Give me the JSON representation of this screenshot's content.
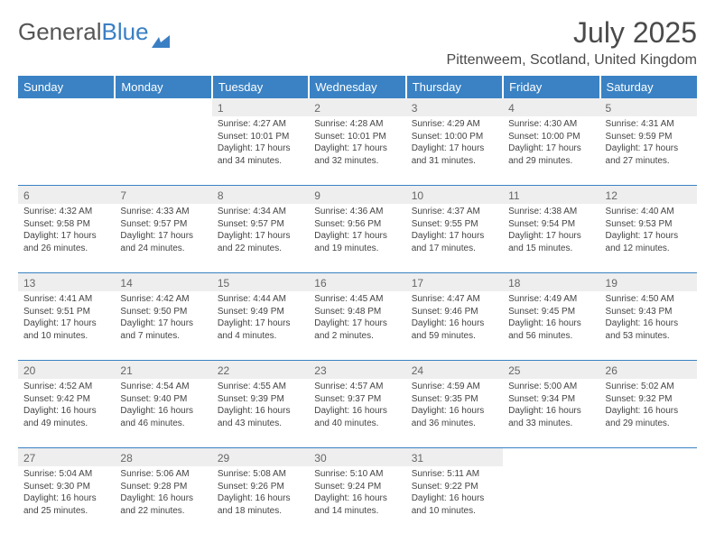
{
  "brand": {
    "word1": "General",
    "word2": "Blue",
    "word1_color": "#555555",
    "word2_color": "#3a7fc4",
    "mark_color": "#3a7fc4"
  },
  "title": "July 2025",
  "location": "Pittenweem, Scotland, United Kingdom",
  "colors": {
    "header_bg": "#3a82c4",
    "header_text": "#ffffff",
    "rule": "#3a82c4",
    "shade": "#eeeeee",
    "body_text": "#444444",
    "daynum_text": "#666666",
    "page_bg": "#ffffff"
  },
  "day_headers": [
    "Sunday",
    "Monday",
    "Tuesday",
    "Wednesday",
    "Thursday",
    "Friday",
    "Saturday"
  ],
  "weeks": [
    [
      null,
      null,
      {
        "n": "1",
        "sr": "4:27 AM",
        "ss": "10:01 PM",
        "dl": "17 hours and 34 minutes."
      },
      {
        "n": "2",
        "sr": "4:28 AM",
        "ss": "10:01 PM",
        "dl": "17 hours and 32 minutes."
      },
      {
        "n": "3",
        "sr": "4:29 AM",
        "ss": "10:00 PM",
        "dl": "17 hours and 31 minutes."
      },
      {
        "n": "4",
        "sr": "4:30 AM",
        "ss": "10:00 PM",
        "dl": "17 hours and 29 minutes."
      },
      {
        "n": "5",
        "sr": "4:31 AM",
        "ss": "9:59 PM",
        "dl": "17 hours and 27 minutes."
      }
    ],
    [
      {
        "n": "6",
        "sr": "4:32 AM",
        "ss": "9:58 PM",
        "dl": "17 hours and 26 minutes."
      },
      {
        "n": "7",
        "sr": "4:33 AM",
        "ss": "9:57 PM",
        "dl": "17 hours and 24 minutes."
      },
      {
        "n": "8",
        "sr": "4:34 AM",
        "ss": "9:57 PM",
        "dl": "17 hours and 22 minutes."
      },
      {
        "n": "9",
        "sr": "4:36 AM",
        "ss": "9:56 PM",
        "dl": "17 hours and 19 minutes."
      },
      {
        "n": "10",
        "sr": "4:37 AM",
        "ss": "9:55 PM",
        "dl": "17 hours and 17 minutes."
      },
      {
        "n": "11",
        "sr": "4:38 AM",
        "ss": "9:54 PM",
        "dl": "17 hours and 15 minutes."
      },
      {
        "n": "12",
        "sr": "4:40 AM",
        "ss": "9:53 PM",
        "dl": "17 hours and 12 minutes."
      }
    ],
    [
      {
        "n": "13",
        "sr": "4:41 AM",
        "ss": "9:51 PM",
        "dl": "17 hours and 10 minutes."
      },
      {
        "n": "14",
        "sr": "4:42 AM",
        "ss": "9:50 PM",
        "dl": "17 hours and 7 minutes."
      },
      {
        "n": "15",
        "sr": "4:44 AM",
        "ss": "9:49 PM",
        "dl": "17 hours and 4 minutes."
      },
      {
        "n": "16",
        "sr": "4:45 AM",
        "ss": "9:48 PM",
        "dl": "17 hours and 2 minutes."
      },
      {
        "n": "17",
        "sr": "4:47 AM",
        "ss": "9:46 PM",
        "dl": "16 hours and 59 minutes."
      },
      {
        "n": "18",
        "sr": "4:49 AM",
        "ss": "9:45 PM",
        "dl": "16 hours and 56 minutes."
      },
      {
        "n": "19",
        "sr": "4:50 AM",
        "ss": "9:43 PM",
        "dl": "16 hours and 53 minutes."
      }
    ],
    [
      {
        "n": "20",
        "sr": "4:52 AM",
        "ss": "9:42 PM",
        "dl": "16 hours and 49 minutes."
      },
      {
        "n": "21",
        "sr": "4:54 AM",
        "ss": "9:40 PM",
        "dl": "16 hours and 46 minutes."
      },
      {
        "n": "22",
        "sr": "4:55 AM",
        "ss": "9:39 PM",
        "dl": "16 hours and 43 minutes."
      },
      {
        "n": "23",
        "sr": "4:57 AM",
        "ss": "9:37 PM",
        "dl": "16 hours and 40 minutes."
      },
      {
        "n": "24",
        "sr": "4:59 AM",
        "ss": "9:35 PM",
        "dl": "16 hours and 36 minutes."
      },
      {
        "n": "25",
        "sr": "5:00 AM",
        "ss": "9:34 PM",
        "dl": "16 hours and 33 minutes."
      },
      {
        "n": "26",
        "sr": "5:02 AM",
        "ss": "9:32 PM",
        "dl": "16 hours and 29 minutes."
      }
    ],
    [
      {
        "n": "27",
        "sr": "5:04 AM",
        "ss": "9:30 PM",
        "dl": "16 hours and 25 minutes."
      },
      {
        "n": "28",
        "sr": "5:06 AM",
        "ss": "9:28 PM",
        "dl": "16 hours and 22 minutes."
      },
      {
        "n": "29",
        "sr": "5:08 AM",
        "ss": "9:26 PM",
        "dl": "16 hours and 18 minutes."
      },
      {
        "n": "30",
        "sr": "5:10 AM",
        "ss": "9:24 PM",
        "dl": "16 hours and 14 minutes."
      },
      {
        "n": "31",
        "sr": "5:11 AM",
        "ss": "9:22 PM",
        "dl": "16 hours and 10 minutes."
      },
      null,
      null
    ]
  ],
  "labels": {
    "sunrise": "Sunrise: ",
    "sunset": "Sunset: ",
    "daylight": "Daylight: "
  }
}
